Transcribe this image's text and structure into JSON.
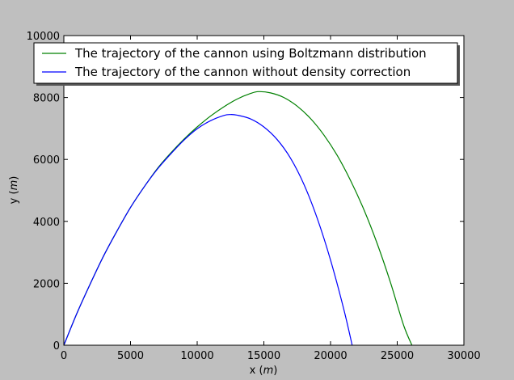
{
  "chart_data": {
    "type": "line",
    "title": "",
    "xlabel": "x ($m$)",
    "ylabel": "y ($m$)",
    "xlim": [
      0,
      30000
    ],
    "ylim": [
      0,
      10000
    ],
    "x_ticks": [
      0,
      5000,
      10000,
      15000,
      20000,
      25000,
      30000
    ],
    "y_ticks": [
      0,
      2000,
      4000,
      6000,
      8000,
      10000
    ],
    "grid": false,
    "legend_position": "top",
    "series": [
      {
        "name": "The trajectory of the cannon using Boltzmann distribution",
        "color": "#008000",
        "x": [
          0,
          1000,
          2000,
          3000,
          4000,
          5000,
          6000,
          7000,
          8000,
          9000,
          10000,
          11000,
          12000,
          13000,
          14000,
          14600,
          15500,
          16500,
          17500,
          18500,
          19500,
          20500,
          21500,
          22500,
          23500,
          24500,
          25500,
          26300,
          26600
        ],
        "y": [
          0,
          1050,
          2000,
          2900,
          3700,
          4450,
          5100,
          5700,
          6200,
          6650,
          7050,
          7400,
          7700,
          7950,
          8130,
          8190,
          8150,
          8000,
          7720,
          7320,
          6790,
          6130,
          5320,
          4380,
          3280,
          2020,
          620,
          -200,
          -650
        ]
      },
      {
        "name": "The trajectory of the cannon without density correction",
        "color": "#0000ff",
        "x": [
          0,
          1000,
          2000,
          3000,
          4000,
          5000,
          6000,
          7000,
          8000,
          9000,
          10000,
          11000,
          12000,
          12500,
          13000,
          14000,
          15000,
          16000,
          17000,
          18000,
          19000,
          20000,
          21000,
          21700
        ],
        "y": [
          0,
          1050,
          2000,
          2900,
          3700,
          4450,
          5100,
          5680,
          6170,
          6620,
          6990,
          7250,
          7420,
          7450,
          7430,
          7310,
          7050,
          6640,
          6040,
          5200,
          4100,
          2750,
          1150,
          -150
        ]
      }
    ]
  }
}
